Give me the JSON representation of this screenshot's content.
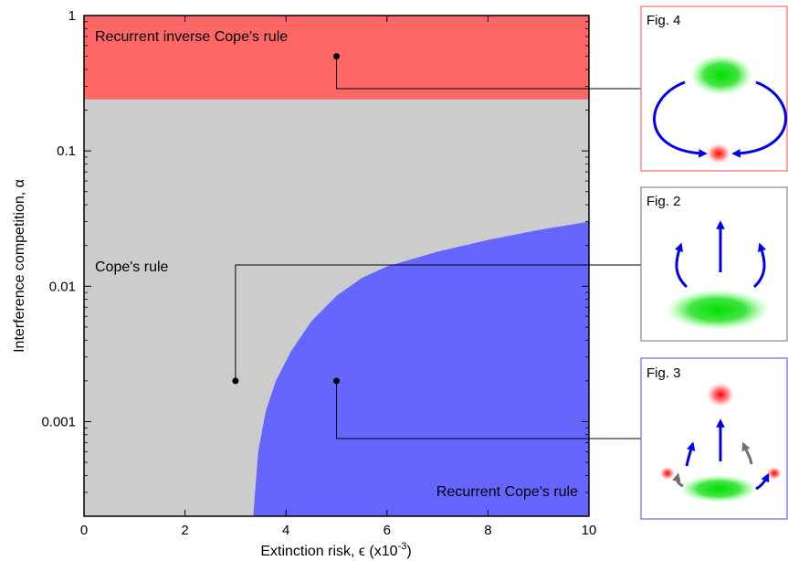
{
  "chart_data": {
    "type": "phase-diagram",
    "xlabel": "Extinction risk, ϵ (x10",
    "xlabel_exponent": "-3",
    "xlabel_suffix": ")",
    "ylabel": "Interference competition, α",
    "xlim": [
      0,
      10
    ],
    "ylim": [
      0.0002,
      1
    ],
    "yscale": "log",
    "x_ticks": [
      {
        "value": 0,
        "label": "0"
      },
      {
        "value": 2,
        "label": "2"
      },
      {
        "value": 4,
        "label": "4"
      },
      {
        "value": 6,
        "label": "6"
      },
      {
        "value": 8,
        "label": "8"
      },
      {
        "value": 10,
        "label": "10"
      }
    ],
    "y_ticks": [
      {
        "value": 1,
        "label": "1"
      },
      {
        "value": 0.1,
        "label": "0.1"
      },
      {
        "value": 0.01,
        "label": "0.01"
      },
      {
        "value": 0.001,
        "label": "0.001"
      }
    ],
    "regions": [
      {
        "name": "Recurrent inverse Cope's rule",
        "color": "#ff6666",
        "alpha_min": 0.24
      },
      {
        "name": "Cope's rule",
        "color": "#cccccc"
      },
      {
        "name": "Recurrent Cope's rule",
        "color": "#6666ff",
        "boundary": [
          [
            3.35,
            0.0002
          ],
          [
            3.45,
            0.0006
          ],
          [
            3.6,
            0.0012
          ],
          [
            3.8,
            0.002
          ],
          [
            4.1,
            0.0033
          ],
          [
            4.5,
            0.0055
          ],
          [
            5.0,
            0.0085
          ],
          [
            5.5,
            0.0115
          ],
          [
            6.0,
            0.014
          ],
          [
            7.0,
            0.018
          ],
          [
            8.0,
            0.022
          ],
          [
            9.0,
            0.026
          ],
          [
            10.0,
            0.03
          ]
        ]
      }
    ],
    "points": [
      {
        "x": 5,
        "y": 0.5,
        "links_to": "Fig. 4"
      },
      {
        "x": 3,
        "y": 0.002,
        "links_to": "Fig. 2"
      },
      {
        "x": 5,
        "y": 0.002,
        "links_to": "Fig. 3"
      }
    ]
  },
  "panels": [
    {
      "title": "Fig. 4",
      "border": "#ff6666"
    },
    {
      "title": "Fig. 2",
      "border": "#888888"
    },
    {
      "title": "Fig. 3",
      "border": "#6666ff"
    }
  ]
}
